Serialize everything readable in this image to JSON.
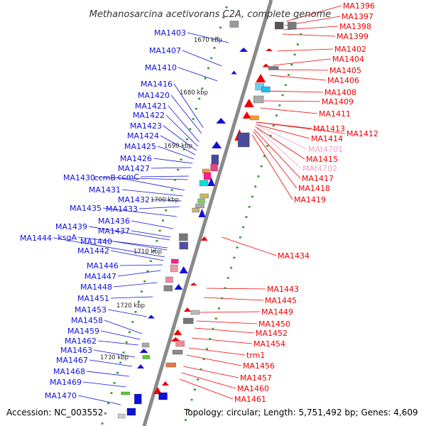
{
  "title": "Methanosarcina acetivorans C2A, complete genome",
  "footer": {
    "accession": "Accession: NC_003552",
    "topology": "Topology: circular; Length: 5,751,492 bp; Genes: 4,609"
  },
  "colors": {
    "left_labels": "#1010d8",
    "right_labels": "#ee0000",
    "trna_labels": "#f0a0c8",
    "backbone": "#8a8a8a",
    "ruler_ticks": "#2a9a2a"
  },
  "scale_ticks": [
    "1670 kbp",
    "1680 kbp",
    "1690 kbp",
    "1700 kbp",
    "1710 kbp",
    "1720 kbp",
    "1730 kbp"
  ],
  "left_genes": [
    "MA1403",
    "MA1407",
    "MA1410",
    "MA1416",
    "MA1420",
    "MA1421",
    "MA1422",
    "MA1423",
    "MA1424",
    "MA1425",
    "MA1426",
    "MA1427",
    "ccmC",
    "MA1430",
    "ccmB",
    "MA1431",
    "MA1432",
    "MA1433",
    "MA1435",
    "MA1436",
    "MA1437",
    "MA1439",
    "ksgA",
    "MA1440",
    "MA1444",
    "MA1442",
    "MA1446",
    "MA1447",
    "MA1448",
    "MA1451",
    "MA1453",
    "MA1458",
    "MA1459",
    "MA1462",
    "MA1463",
    "MA1467",
    "MA1468",
    "MA1469",
    "MA1470"
  ],
  "right_genes": [
    "MA1396",
    "MA1397",
    "MA1398",
    "MA1399",
    "MA1402",
    "MA1404",
    "MA1405",
    "MA1406",
    "MA1408",
    "MA1409",
    "MA1411",
    "MA1413",
    "MA1412",
    "MA1414",
    "MAt4701",
    "MA1415",
    "MAt4702",
    "MA1417",
    "MA1418",
    "MA1419",
    "MA1434",
    "MA1443",
    "MA1445",
    "MA1449",
    "MA1450",
    "MA1452",
    "MA1454",
    "trm1",
    "MA1456",
    "MA1457",
    "MA1460",
    "MA1461"
  ]
}
